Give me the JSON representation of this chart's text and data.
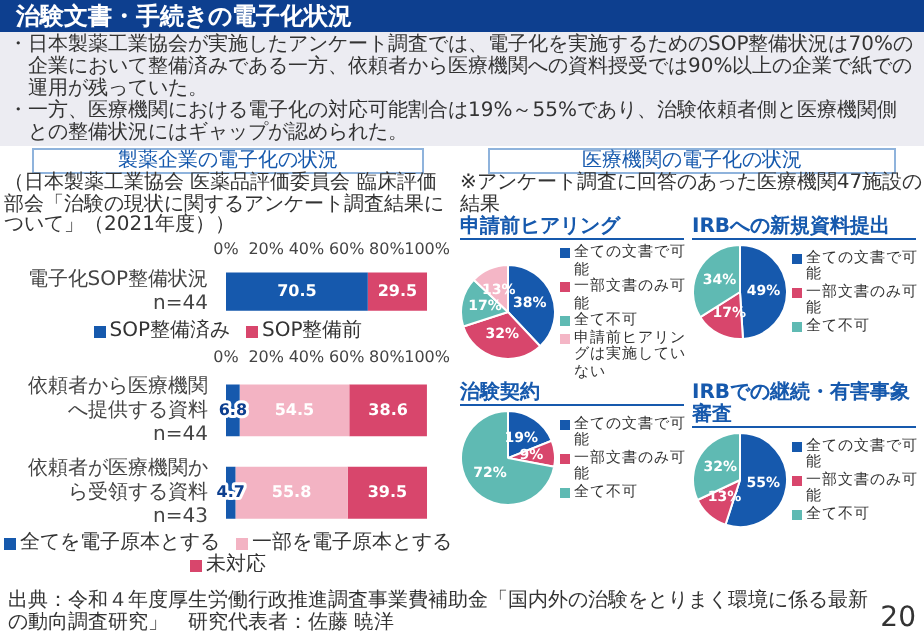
{
  "chart_data": [
    {
      "type": "other",
      "title": "治験文書・手続きの電子化状況",
      "annotations": [
        "・日本製薬工業協会が実施したアンケート調査では、電子化を実施するためのSOP整備状況は70%の企業において整備済みである一方、依頼者から医療機関への資料授受では90%以上の企業で紙での運用が残っていた。",
        "・一方、医療機関における電子化の対応可能割合は19%～55%であり、治験依頼者側と医療機関側との整備状況にはギャップが認められた。",
        "製薬企業の電子化の状況",
        "医療機関の電子化の状況",
        "※アンケート調査に回答のあった医療機関47施設の結果",
        "出典：令和４年度厚生労働行政推進調査事業費補助金「国内外の治験をとりまく環境に係る最新の動向調査研究」　研究代表者：佐藤 暁洋",
        "20"
      ]
    },
    {
      "type": "bar",
      "orientation": "horizontal",
      "stacked": true,
      "subtitle": "（日本製薬工業協会 医薬品評価委員会 臨床評価部会「治験の現状に関するアンケート調査結果について」（2021年度））",
      "categories": [
        "電子化SOP整備状況\nn=44"
      ],
      "series": [
        {
          "name": "SOP整備済み",
          "color": "#1659ad",
          "values": [
            70.5
          ]
        },
        {
          "name": "SOP整備前",
          "color": "#d8466c",
          "values": [
            29.5
          ]
        }
      ],
      "xlim": [
        0,
        100
      ],
      "xticks": [
        {
          "value": 0,
          "label": "0%"
        },
        {
          "value": 20,
          "label": "20%"
        },
        {
          "value": 40,
          "label": "40%"
        },
        {
          "value": 60,
          "label": "60%"
        },
        {
          "value": 80,
          "label": "80%"
        },
        {
          "value": 100,
          "label": "100%"
        }
      ],
      "data_labels": true,
      "legend": "bottom"
    },
    {
      "type": "bar",
      "orientation": "horizontal",
      "stacked": true,
      "categories": [
        "依頼者から医療機関へ提供する資料\nn=44",
        "依頼者が医療機関から受領する資料\nn=43"
      ],
      "series": [
        {
          "name": "全てを電子原本とする",
          "color": "#1659ad",
          "values": [
            6.8,
            4.7
          ]
        },
        {
          "name": "一部を電子原本とする",
          "color": "#f3b3c3",
          "values": [
            54.5,
            55.8
          ]
        },
        {
          "name": "未対応",
          "color": "#d8466c",
          "values": [
            38.6,
            39.5
          ]
        }
      ],
      "xlim": [
        0,
        100
      ],
      "xticks": [
        {
          "value": 0,
          "label": "0%"
        },
        {
          "value": 20,
          "label": "20%"
        },
        {
          "value": 40,
          "label": "40%"
        },
        {
          "value": 60,
          "label": "60%"
        },
        {
          "value": 80,
          "label": "80%"
        },
        {
          "value": 100,
          "label": "100%"
        }
      ],
      "data_labels": true,
      "legend": "bottom"
    },
    {
      "type": "pie",
      "title": "申請前ヒアリング",
      "categories": [
        "全ての文書で可能",
        "一部文書のみ可能",
        "全て不可",
        "申請前ヒアリングは実施していない"
      ],
      "values": [
        38,
        32,
        17,
        13
      ],
      "colors": [
        "#1659ad",
        "#d8466c",
        "#5fbab3",
        "#f4b6c6"
      ],
      "value_labels": [
        "38%",
        "32%",
        "17%",
        "13%"
      ],
      "legend": "right"
    },
    {
      "type": "pie",
      "title": "IRBへの新規資料提出",
      "categories": [
        "全ての文書で可能",
        "一部文書のみ可能",
        "全て不可"
      ],
      "values": [
        49,
        17,
        34
      ],
      "colors": [
        "#1659ad",
        "#d8466c",
        "#5fbab3"
      ],
      "value_labels": [
        "49%",
        "17%",
        "34%"
      ],
      "legend": "right"
    },
    {
      "type": "pie",
      "title": "治験契約",
      "categories": [
        "全ての文書で可能",
        "一部文書のみ可能",
        "全て不可"
      ],
      "values": [
        19,
        9,
        72
      ],
      "colors": [
        "#1659ad",
        "#d8466c",
        "#5fbab3"
      ],
      "value_labels": [
        "19%",
        "9%",
        "72%"
      ],
      "legend": "right"
    },
    {
      "type": "pie",
      "title": "IRBでの継続・有害事象審査",
      "categories": [
        "全ての文書で可能",
        "一部文書のみ可能",
        "全て不可"
      ],
      "values": [
        55,
        13,
        32
      ],
      "colors": [
        "#1659ad",
        "#d8466c",
        "#5fbab3"
      ],
      "value_labels": [
        "55%",
        "13%",
        "32%"
      ],
      "legend": "right"
    }
  ]
}
